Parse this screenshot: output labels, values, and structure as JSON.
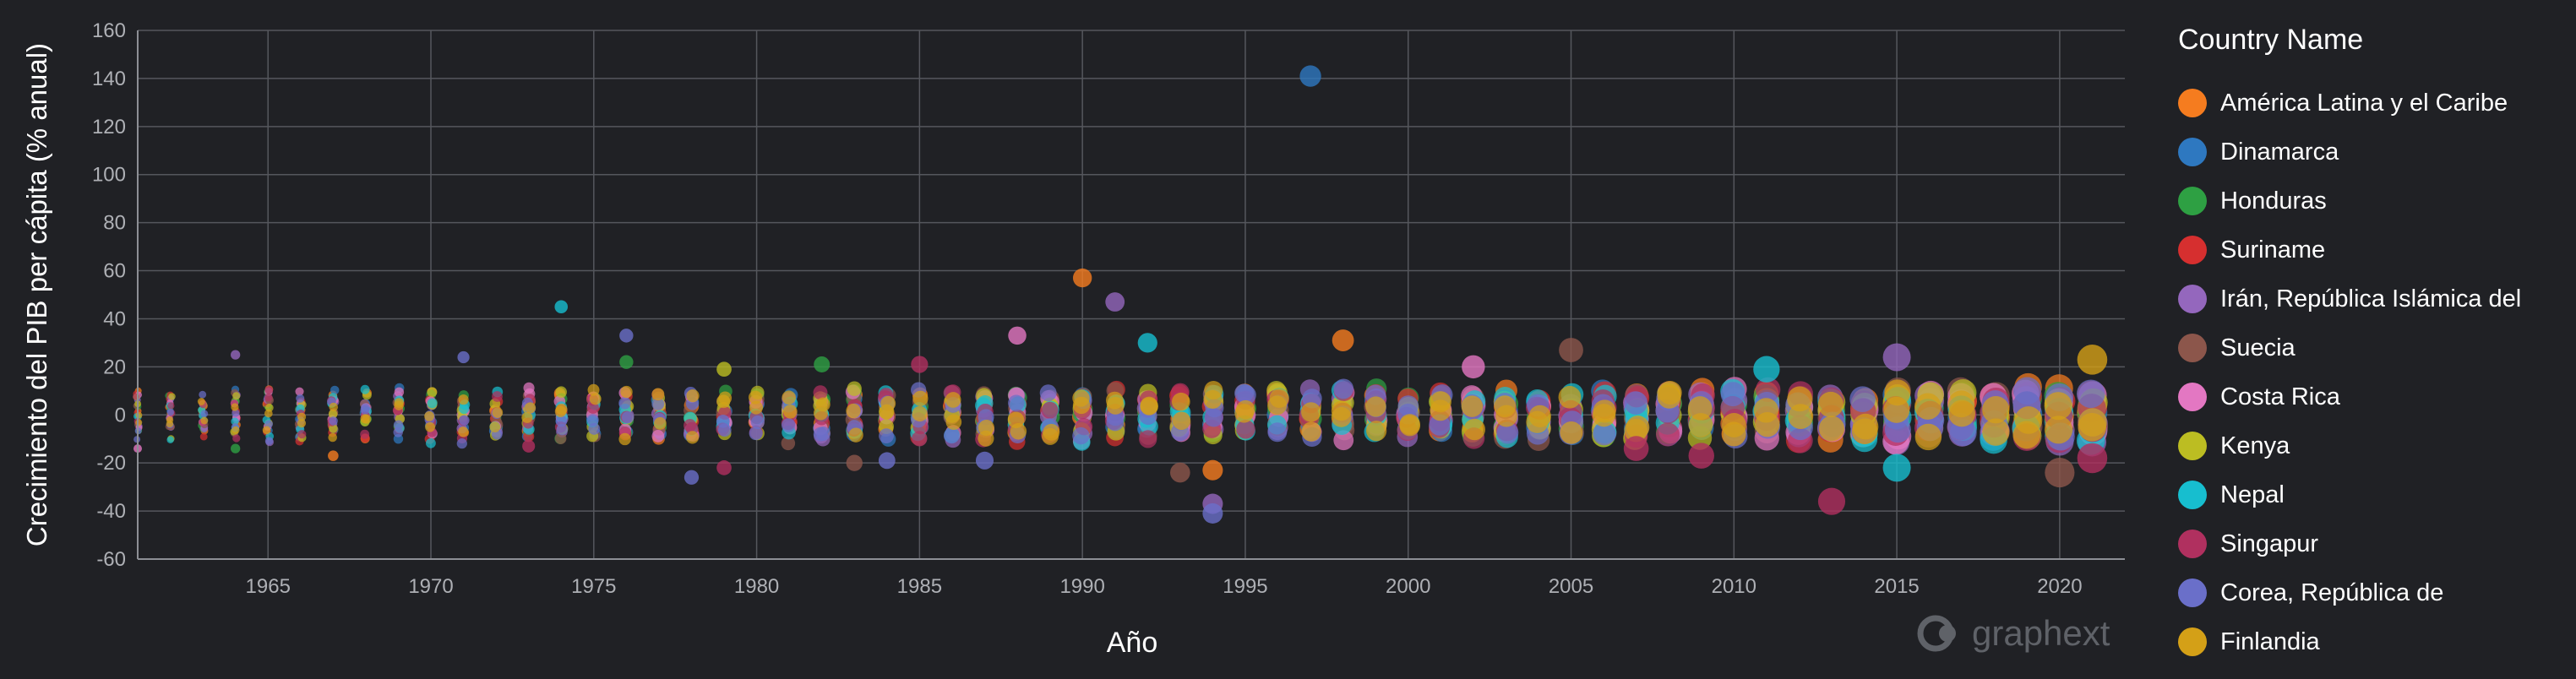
{
  "chart_data": {
    "type": "scatter",
    "xlabel": "Año",
    "ylabel": "Crecimiento del PIB per cápita (% anual)",
    "xlim": [
      1961,
      2022
    ],
    "ylim": [
      -60,
      160
    ],
    "x_ticks": [
      "1965",
      "1970",
      "1975",
      "1980",
      "1985",
      "1990",
      "1995",
      "2000",
      "2005",
      "2010",
      "2015",
      "2020"
    ],
    "y_ticks": [
      "-60",
      "-40",
      "-20",
      "0",
      "20",
      "40",
      "60",
      "80",
      "100",
      "120",
      "140",
      "160"
    ],
    "grid": true,
    "legend": {
      "title": "Country Name",
      "placement": "right",
      "entries": [
        {
          "name": "América Latina y el Caribe",
          "color": "#f57c1f"
        },
        {
          "name": "Dinamarca",
          "color": "#2e78c0"
        },
        {
          "name": "Honduras",
          "color": "#2ea043"
        },
        {
          "name": "Suriname",
          "color": "#d62f2f"
        },
        {
          "name": "Irán, República Islámica del",
          "color": "#9467bd"
        },
        {
          "name": "Suecia",
          "color": "#8c564b"
        },
        {
          "name": "Costa Rica",
          "color": "#e377c2"
        },
        {
          "name": "Kenya",
          "color": "#bcbd22"
        },
        {
          "name": "Nepal",
          "color": "#17becf"
        },
        {
          "name": "Singapur",
          "color": "#b0305f"
        },
        {
          "name": "Corea, República de",
          "color": "#6a6fc9"
        },
        {
          "name": "Finlandia",
          "color": "#d4a017"
        }
      ]
    },
    "notable_points": [
      {
        "series": "Dinamarca",
        "x": 1997,
        "y": 141
      },
      {
        "series": "América Latina y el Caribe",
        "x": 1990,
        "y": 57
      },
      {
        "series": "Irán, República Islámica del",
        "x": 1991,
        "y": 47
      },
      {
        "series": "Nepal",
        "x": 1974,
        "y": 45
      },
      {
        "series": "Corea, República de",
        "x": 1976,
        "y": 33
      },
      {
        "series": "Costa Rica",
        "x": 1988,
        "y": 33
      },
      {
        "series": "América Latina y el Caribe",
        "x": 1998,
        "y": 31
      },
      {
        "series": "Nepal",
        "x": 1992,
        "y": 30
      },
      {
        "series": "Suecia",
        "x": 2005,
        "y": 27
      },
      {
        "series": "Irán, República Islámica del",
        "x": 1964,
        "y": 25
      },
      {
        "series": "Irán, República Islámica del",
        "x": 2015,
        "y": 24
      },
      {
        "series": "Corea, República de",
        "x": 1971,
        "y": 24
      },
      {
        "series": "Finlandia",
        "x": 2021,
        "y": 23
      },
      {
        "series": "Honduras",
        "x": 1976,
        "y": 22
      },
      {
        "series": "Singapur",
        "x": 1985,
        "y": 21
      },
      {
        "series": "Honduras",
        "x": 1982,
        "y": 21
      },
      {
        "series": "Costa Rica",
        "x": 2002,
        "y": 20
      },
      {
        "series": "Kenya",
        "x": 1979,
        "y": 19
      },
      {
        "series": "Nepal",
        "x": 2011,
        "y": 19
      },
      {
        "series": "Singapur",
        "x": 2021,
        "y": -18
      },
      {
        "series": "América Latina y el Caribe",
        "x": 1967,
        "y": -17
      },
      {
        "series": "Honduras",
        "x": 1964,
        "y": -14
      },
      {
        "series": "Costa Rica",
        "x": 1961,
        "y": -14
      },
      {
        "series": "Singapur",
        "x": 1973,
        "y": -13
      },
      {
        "series": "Suecia",
        "x": 1983,
        "y": -20
      },
      {
        "series": "Corea, República de",
        "x": 1984,
        "y": -19
      },
      {
        "series": "Corea, República de",
        "x": 1987,
        "y": -19
      },
      {
        "series": "Nepal",
        "x": 2015,
        "y": -22
      },
      {
        "series": "América Latina y el Caribe",
        "x": 1994,
        "y": -23
      },
      {
        "series": "Suecia",
        "x": 1993,
        "y": -24
      },
      {
        "series": "Suecia",
        "x": 2020,
        "y": -24
      },
      {
        "series": "Corea, República de",
        "x": 1978,
        "y": -26
      },
      {
        "series": "Singapur",
        "x": 1979,
        "y": -22
      },
      {
        "series": "Singapur",
        "x": 2013,
        "y": -36
      },
      {
        "series": "Irán, República Islámica del",
        "x": 1994,
        "y": -37
      },
      {
        "series": "Corea, República de",
        "x": 1994,
        "y": -41
      },
      {
        "series": "Singapur",
        "x": 2009,
        "y": -17
      },
      {
        "series": "Singapur",
        "x": 2007,
        "y": -14
      }
    ]
  },
  "brand": "graphext"
}
